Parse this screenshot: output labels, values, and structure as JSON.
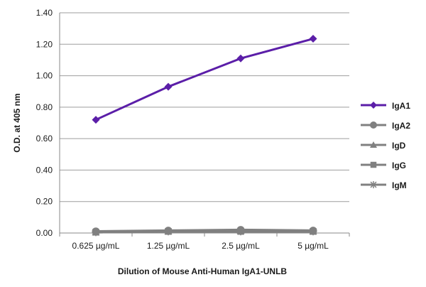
{
  "chart_data": {
    "type": "line",
    "title": "",
    "xlabel": "Dilution of Mouse Anti-Human IgA1-UNLB",
    "ylabel": "O.D. at 405 nm",
    "categories": [
      "0.625 µg/mL",
      "1.25 µg/mL",
      "2.5 µg/mL",
      "5 µg/mL"
    ],
    "ylim": [
      0,
      1.4
    ],
    "yticks": [
      "0.00",
      "0.20",
      "0.40",
      "0.60",
      "0.80",
      "1.00",
      "1.20",
      "1.40"
    ],
    "grid": "horizontal",
    "legend_position": "right",
    "series": [
      {
        "name": "IgA1",
        "values": [
          0.72,
          0.93,
          1.11,
          1.235
        ],
        "color": "#5b1ea8",
        "marker": "diamond"
      },
      {
        "name": "IgA2",
        "values": [
          0.01,
          0.015,
          0.02,
          0.015
        ],
        "color": "#808080",
        "marker": "circle"
      },
      {
        "name": "IgD",
        "values": [
          0.005,
          0.01,
          0.015,
          0.01
        ],
        "color": "#808080",
        "marker": "triangle"
      },
      {
        "name": "IgG",
        "values": [
          0.005,
          0.01,
          0.01,
          0.01
        ],
        "color": "#808080",
        "marker": "square"
      },
      {
        "name": "IgM",
        "values": [
          0.005,
          0.01,
          0.01,
          0.01
        ],
        "color": "#808080",
        "marker": "star"
      }
    ]
  }
}
